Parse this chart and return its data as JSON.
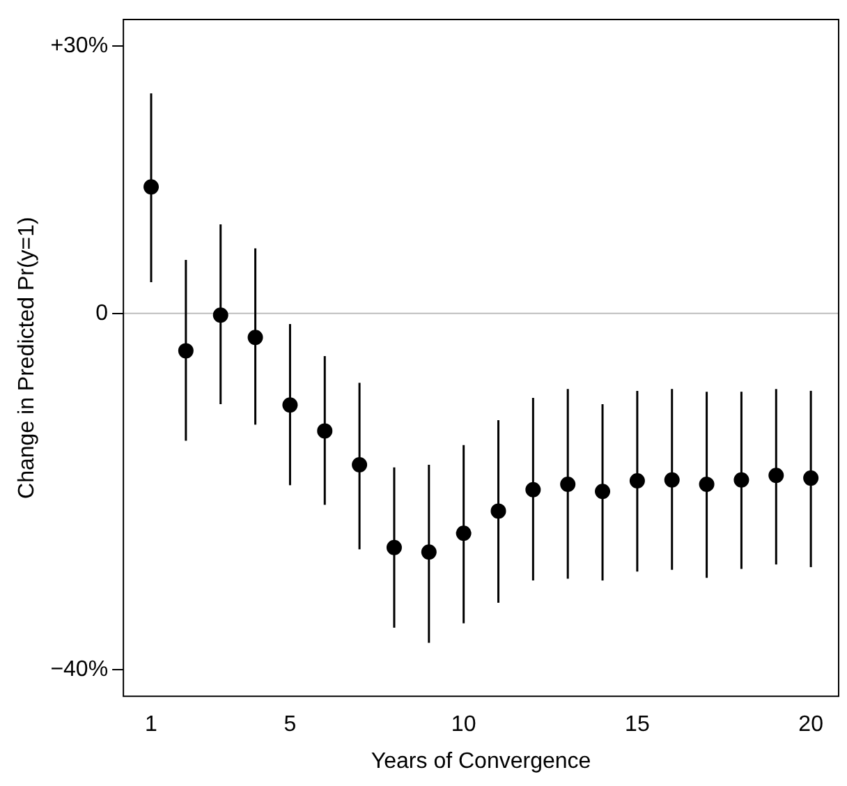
{
  "chart_data": {
    "type": "scatter",
    "xlabel": "Years of Convergence",
    "ylabel": "Change in Predicted Pr(y=1)",
    "x": [
      1,
      2,
      3,
      4,
      5,
      6,
      7,
      8,
      9,
      10,
      11,
      12,
      13,
      14,
      15,
      16,
      17,
      18,
      19,
      20
    ],
    "series": [
      {
        "color": "#000000",
        "values": [
          14.2,
          -4.2,
          -0.2,
          -2.7,
          -10.3,
          -13.2,
          -17,
          -26.3,
          -26.8,
          -24.7,
          -22.2,
          -19.8,
          -19.2,
          -20,
          -18.8,
          -18.7,
          -19.2,
          -18.7,
          -18.2,
          -18.5
        ],
        "errors": [
          [
            3.5,
            24.7
          ],
          [
            -14.3,
            6
          ],
          [
            -10.2,
            10
          ],
          [
            -12.5,
            7.3
          ],
          [
            -19.3,
            -1.2
          ],
          [
            -21.5,
            -4.8
          ],
          [
            -26.5,
            -7.8
          ],
          [
            -35.3,
            -17.3
          ],
          [
            -37,
            -17
          ],
          [
            -34.8,
            -14.8
          ],
          [
            -32.5,
            -12
          ],
          [
            -30,
            -9.5
          ],
          [
            -29.8,
            -8.5
          ],
          [
            -30,
            -10.2
          ],
          [
            -29,
            -8.7
          ],
          [
            -28.8,
            -8.5
          ],
          [
            -29.7,
            -8.8
          ],
          [
            -28.7,
            -8.8
          ],
          [
            -28.2,
            -8.5
          ],
          [
            -28.5,
            -8.7
          ]
        ]
      }
    ],
    "xlim": [
      0.2,
      20.8
    ],
    "xticks": [
      1,
      5,
      10,
      15,
      20
    ],
    "ylim": [
      -43,
      33
    ],
    "yticks": [
      {
        "value": 30,
        "label": "+30%"
      },
      {
        "value": 0,
        "label": "0"
      },
      {
        "value": -40,
        "label": "−40%"
      }
    ],
    "ref_lines": [
      {
        "axis": "y",
        "value": 0,
        "color": "#bebebe"
      }
    ],
    "marker": "circle",
    "grid": false,
    "legend": false
  }
}
